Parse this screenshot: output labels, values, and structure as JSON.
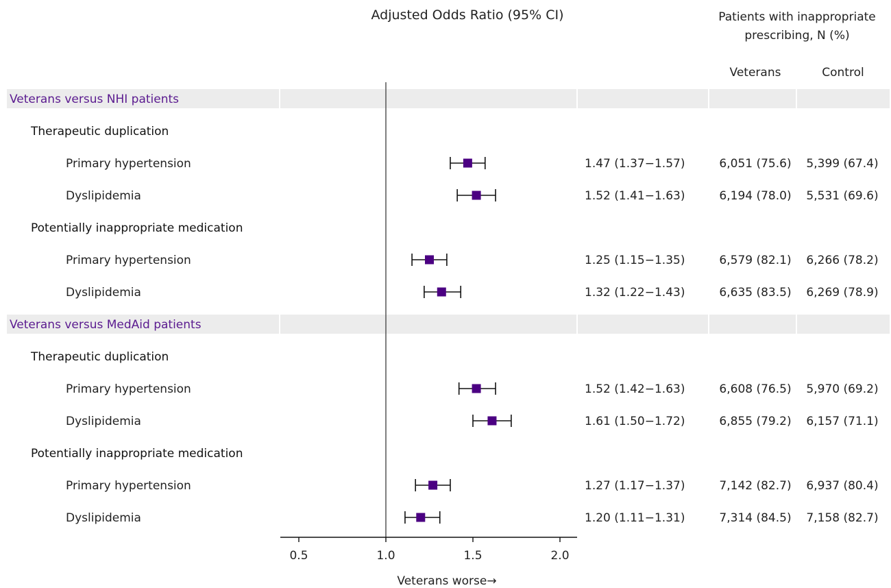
{
  "chart_data": {
    "type": "forest",
    "title": "Adjusted Odds Ratio (95% CI)",
    "counts_header": "Patients with inappropriate prescribing, N (%)",
    "col_veterans": "Veterans",
    "col_control": "Control",
    "xlabel": "Veterans worse→",
    "xlim": [
      0.4,
      2.1
    ],
    "xticks": [
      0.5,
      1.0,
      1.5,
      2.0
    ],
    "xtick_labels": [
      "0.5",
      "1.0",
      "1.5",
      "2.0"
    ],
    "reference_line": 1.0,
    "colors": {
      "marker": "#4b0082",
      "section_text": "#5a1a8f",
      "section_band": "#ececec",
      "axis": "#111111",
      "ref_line": "#555555"
    },
    "rows": [
      {
        "kind": "section",
        "label": "Veterans versus NHI patients"
      },
      {
        "kind": "group",
        "label": "Therapeutic duplication"
      },
      {
        "kind": "item",
        "label": "Primary hypertension",
        "or": 1.47,
        "lo": 1.37,
        "hi": 1.57,
        "or_text": "1.47 (1.37−1.57)",
        "veterans": "6,051 (75.6)",
        "control": "5,399 (67.4)"
      },
      {
        "kind": "item",
        "label": "Dyslipidemia",
        "or": 1.52,
        "lo": 1.41,
        "hi": 1.63,
        "or_text": "1.52 (1.41−1.63)",
        "veterans": "6,194 (78.0)",
        "control": "5,531 (69.6)"
      },
      {
        "kind": "group",
        "label": "Potentially inappropriate medication"
      },
      {
        "kind": "item",
        "label": "Primary hypertension",
        "or": 1.25,
        "lo": 1.15,
        "hi": 1.35,
        "or_text": "1.25 (1.15−1.35)",
        "veterans": "6,579 (82.1)",
        "control": "6,266 (78.2)"
      },
      {
        "kind": "item",
        "label": "Dyslipidemia",
        "or": 1.32,
        "lo": 1.22,
        "hi": 1.43,
        "or_text": "1.32 (1.22−1.43)",
        "veterans": "6,635 (83.5)",
        "control": "6,269 (78.9)"
      },
      {
        "kind": "section",
        "label": "Veterans versus MedAid patients"
      },
      {
        "kind": "group",
        "label": "Therapeutic duplication"
      },
      {
        "kind": "item",
        "label": "Primary hypertension",
        "or": 1.52,
        "lo": 1.42,
        "hi": 1.63,
        "or_text": "1.52 (1.42−1.63)",
        "veterans": "6,608 (76.5)",
        "control": "5,970 (69.2)"
      },
      {
        "kind": "item",
        "label": "Dyslipidemia",
        "or": 1.61,
        "lo": 1.5,
        "hi": 1.72,
        "or_text": "1.61 (1.50−1.72)",
        "veterans": "6,855 (79.2)",
        "control": "6,157 (71.1)"
      },
      {
        "kind": "group",
        "label": "Potentially inappropriate medication"
      },
      {
        "kind": "item",
        "label": "Primary hypertension",
        "or": 1.27,
        "lo": 1.17,
        "hi": 1.37,
        "or_text": "1.27 (1.17−1.37)",
        "veterans": "7,142 (82.7)",
        "control": "6,937 (80.4)"
      },
      {
        "kind": "item",
        "label": "Dyslipidemia",
        "or": 1.2,
        "lo": 1.11,
        "hi": 1.31,
        "or_text": "1.20 (1.11−1.31)",
        "veterans": "7,314 (84.5)",
        "control": "7,158 (82.7)"
      }
    ]
  }
}
